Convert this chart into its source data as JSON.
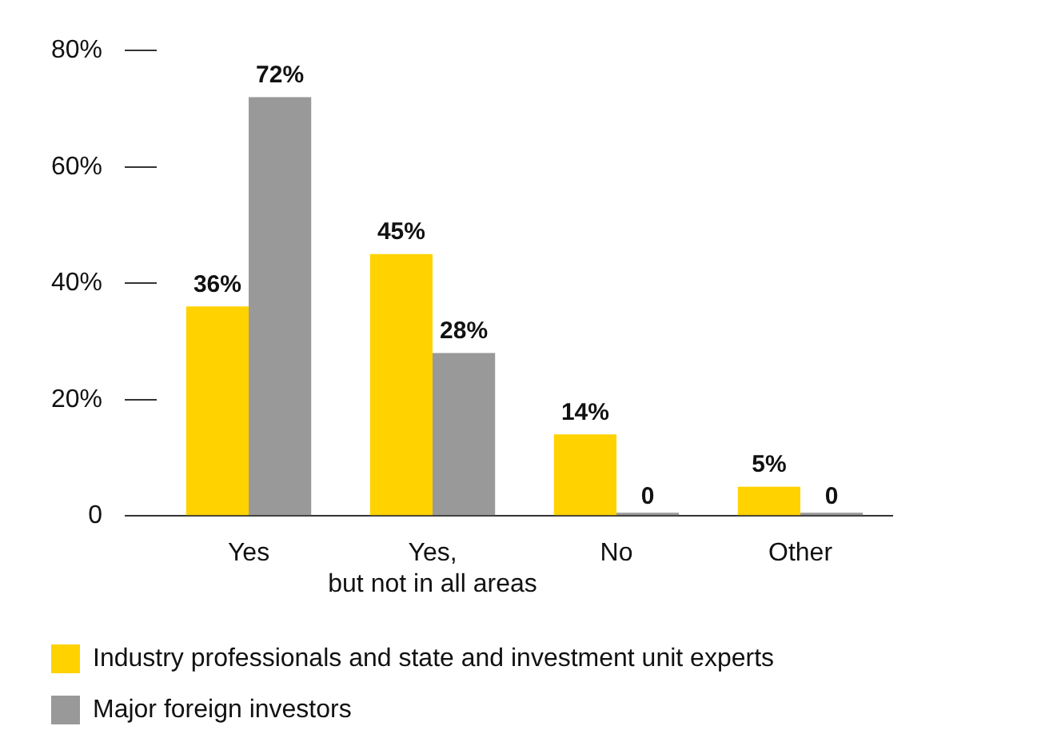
{
  "chart_data": {
    "type": "bar",
    "categories": [
      "Yes",
      "Yes,\nbut not in all areas",
      "No",
      "Other"
    ],
    "series": [
      {
        "name": "Industry professionals and state and investment unit experts",
        "color": "#ffd200",
        "values": [
          36,
          45,
          14,
          5
        ],
        "value_labels": [
          "36%",
          "45%",
          "14%",
          "5%"
        ]
      },
      {
        "name": "Major foreign investors",
        "color": "#999999",
        "values": [
          72,
          28,
          0,
          0
        ],
        "value_labels": [
          "72%",
          "28%",
          "0",
          "0"
        ]
      }
    ],
    "ylim": [
      0,
      80
    ],
    "yticks": [
      {
        "value": 0,
        "label": "0"
      },
      {
        "value": 20,
        "label": "20%"
      },
      {
        "value": 40,
        "label": "40%"
      },
      {
        "value": 60,
        "label": "60%"
      },
      {
        "value": 80,
        "label": "80%"
      }
    ],
    "grid": false,
    "legend": "bottom"
  }
}
